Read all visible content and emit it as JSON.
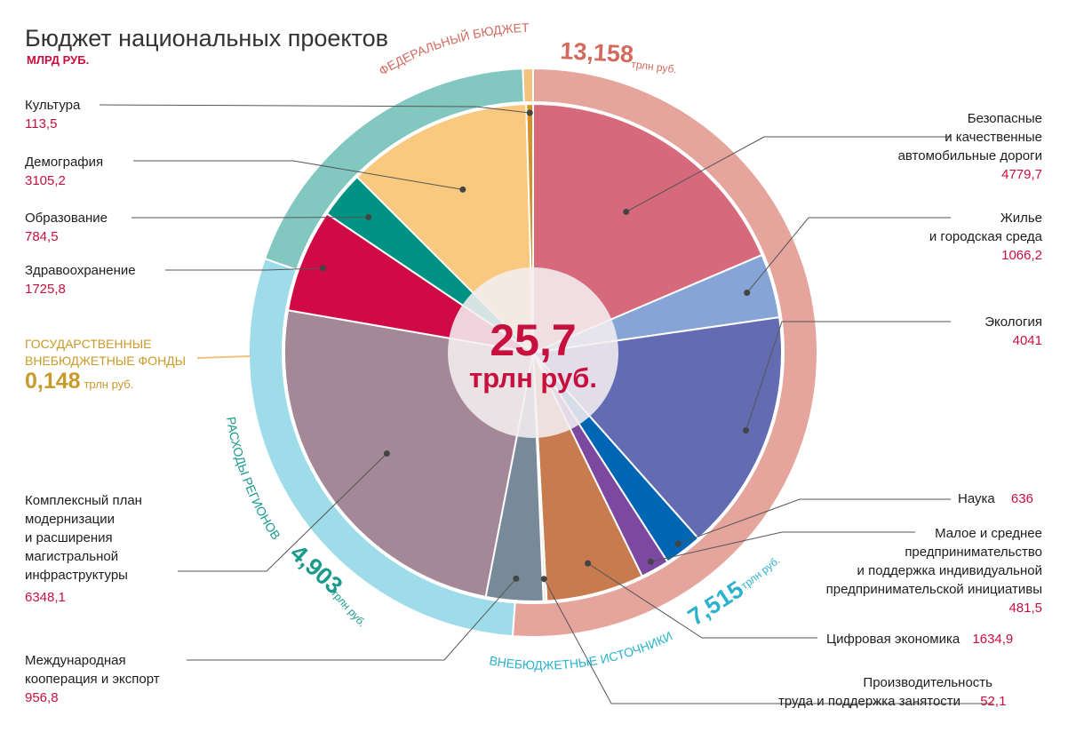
{
  "title": "Бюджет национальных проектов",
  "unit": "МЛРД РУБ.",
  "center": {
    "value": "25,7",
    "unit": "трлн руб."
  },
  "colors": {
    "accent": "#c8103e"
  },
  "chart_data": {
    "type": "pie",
    "title": "Бюджет национальных проектов",
    "unit": "МЛРД РУБ.",
    "total": "25,7 трлн руб.",
    "slices": [
      {
        "name": "Безопасные и качественные автомобильные дороги",
        "value": 4779.7,
        "color": "#d66a7c"
      },
      {
        "name": "Жилье и городская среда",
        "value": 1066.2,
        "color": "#86a4d6"
      },
      {
        "name": "Экология",
        "value": 4041,
        "color": "#636bb3"
      },
      {
        "name": "Наука",
        "value": 636,
        "color": "#0066b3"
      },
      {
        "name": "Малое и среднее предпринимательство и поддержка индивидуальной предпринимательской инициативы",
        "value": 481.5,
        "color": "#7c48a0"
      },
      {
        "name": "Цифровая экономика",
        "value": 1634.9,
        "color": "#c77b4e"
      },
      {
        "name": "Производительность труда и поддержка занятости",
        "value": 52.1,
        "color": "#f2e3d7"
      },
      {
        "name": "Международная кооперация и экспорт",
        "value": 956.8,
        "color": "#788a99"
      },
      {
        "name": "Комплексный план модернизации и расширения магистральной инфраструктуры",
        "value": 6348.1,
        "color": "#a48897"
      },
      {
        "name": "Здравоохранение",
        "value": 1725.8,
        "color": "#cf0a45"
      },
      {
        "name": "Образование",
        "value": 784.5,
        "color": "#009383"
      },
      {
        "name": "Демография",
        "value": 3105.2,
        "color": "#f8c97f"
      },
      {
        "name": "Культура",
        "value": 113.5,
        "color": "#d4922b"
      }
    ],
    "sources": [
      {
        "name": "ФЕДЕРАЛЬНЫЙ БЮДЖЕТ",
        "value": 13.158,
        "label": "13,158",
        "unit": "трлн руб.",
        "color": "#e5a59d"
      },
      {
        "name": "ВНЕБЮДЖЕТНЫЕ ИСТОЧНИКИ",
        "value": 7.515,
        "label": "7,515",
        "unit": "трлн руб.",
        "color": "#9fdcea"
      },
      {
        "name": "РАСХОДЫ РЕГИОНОВ",
        "value": 4.903,
        "label": "4,903",
        "unit": "трлн руб.",
        "color": "#83c8c0"
      },
      {
        "name": "ГОСУДАРСТВЕННЫЕ ВНЕБЮДЖЕТНЫЕ ФОНДЫ",
        "value": 0.148,
        "label": "0,148",
        "unit": "трлн руб.",
        "color": "#f1c27d"
      }
    ]
  },
  "labels": {
    "kultura": {
      "name": "Культура",
      "value": "113,5"
    },
    "demografiya": {
      "name": "Демография",
      "value": "3105,2"
    },
    "obrazovanie": {
      "name": "Образование",
      "value": "784,5"
    },
    "zdrav": {
      "name": "Здравоохранение",
      "value": "1725,8"
    },
    "dorogi": {
      "l1": "Безопасные",
      "l2": "и качественные",
      "l3": "автомобильные дороги",
      "value": "4779,7"
    },
    "zhilie": {
      "l1": "Жилье",
      "l2": "и городская среда",
      "value": "1066,2"
    },
    "ekologiya": {
      "name": "Экология",
      "value": "4041"
    },
    "nauka": {
      "name": "Наука",
      "value": "636"
    },
    "msp": {
      "l1": "Малое и среднее",
      "l2": "предпринимательство",
      "l3": "и поддержка индивидуальной",
      "l4": "предпринимательской инициативы",
      "value": "481,5"
    },
    "cifra": {
      "name": "Цифровая экономика",
      "value": "1634,9"
    },
    "proizv": {
      "l1": "Производительность",
      "l2": "труда и поддержка занятости",
      "value": "52,1"
    },
    "mezhd": {
      "l1": "Международная",
      "l2": "кооперация и экспорт",
      "value": "956,8"
    },
    "kompl": {
      "l1": "Комплексный план",
      "l2": "модернизации",
      "l3": "и расширения",
      "l4": "магистральной",
      "l5": "инфраструктуры",
      "value": "6348,1"
    },
    "fonds": {
      "l1": "ГОСУДАРСТВЕННЫЕ",
      "l2": "ВНЕБЮДЖЕТНЫЕ ФОНДЫ",
      "value": "0,148",
      "unit": "трлн руб."
    }
  }
}
